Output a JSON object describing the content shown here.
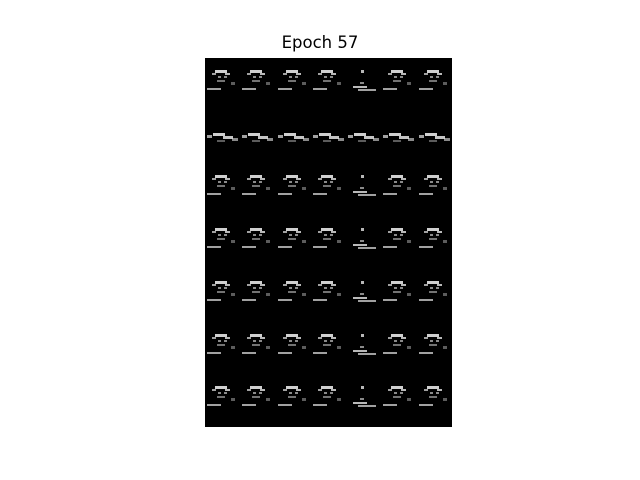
{
  "figure": {
    "title": "Epoch 57"
  },
  "sample_grid": {
    "rows": 7,
    "cols": 7,
    "background": "#000000",
    "foreground": "#e6e6e6",
    "tile_variants": [
      [
        "face",
        "face",
        "face",
        "face",
        "blip",
        "face",
        "face"
      ],
      [
        "streak",
        "streak",
        "streak",
        "streak",
        "streak",
        "streak",
        "streak"
      ],
      [
        "face",
        "face",
        "face",
        "face",
        "blip",
        "face",
        "face"
      ],
      [
        "face",
        "face",
        "face",
        "face",
        "blip",
        "face",
        "face"
      ],
      [
        "face",
        "face",
        "face",
        "face",
        "blip",
        "face",
        "face"
      ],
      [
        "face",
        "face",
        "face",
        "face",
        "blip",
        "face",
        "face"
      ],
      [
        "face",
        "face",
        "face",
        "face",
        "blip",
        "face",
        "face"
      ]
    ]
  }
}
